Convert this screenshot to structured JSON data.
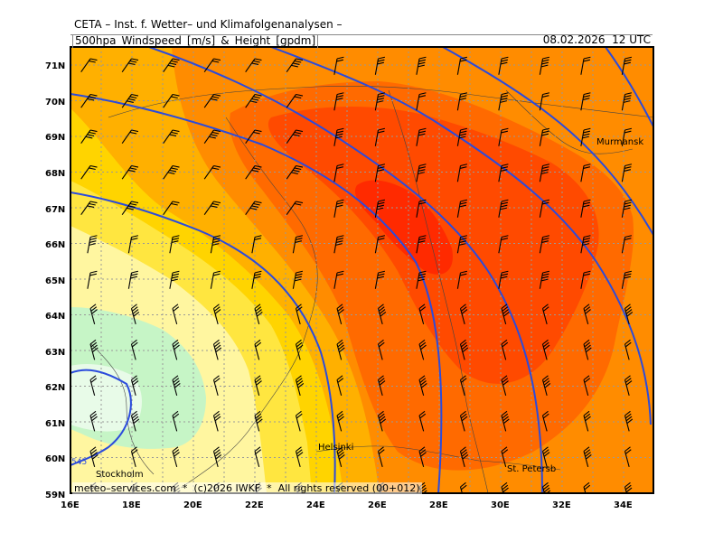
{
  "header": {
    "title": "CETA – Inst. f. Wetter– und Klimafolgenanalysen –",
    "parameter": "500hpa_Windspeed_[m/s]_&_Height_[gpdm]",
    "valid_time": "08.02.2026  12 UTC"
  },
  "footer": "meteo–services.com  *  (c)2026 IWKF  *  All rights reserved (00+012)",
  "axes": {
    "lat_labels": [
      "71N",
      "70N",
      "69N",
      "68N",
      "67N",
      "66N",
      "65N",
      "64N",
      "63N",
      "62N",
      "61N",
      "60N",
      "59N"
    ],
    "lon_labels": [
      "16E",
      "18E",
      "20E",
      "22E",
      "24E",
      "26E",
      "28E",
      "30E",
      "32E",
      "34E"
    ]
  },
  "cities": [
    "Murmansk",
    "Helsinki",
    "Stockholm",
    "St. Petersb"
  ],
  "contour_label": "545",
  "colors": {
    "very_light_green": "#e8fbe8",
    "light_green": "#c6f5c6",
    "pale_yellow": "#fff6a0",
    "yellow": "#ffe640",
    "gold": "#ffd400",
    "light_orange": "#ffb000",
    "orange": "#ff8c00",
    "dark_orange": "#ff6a00",
    "red_orange": "#ff4a00",
    "red": "#ff2a00",
    "contour": "#2b4bdc",
    "grid": "#999999"
  }
}
